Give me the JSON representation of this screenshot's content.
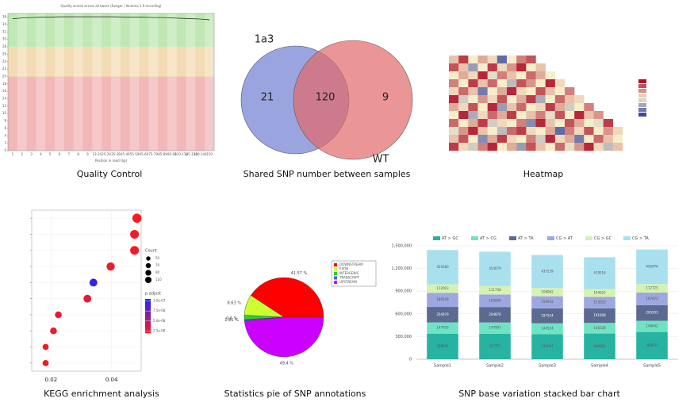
{
  "chart_data": [
    {
      "type": "line",
      "caption": "Quality Control",
      "title": "Quality scores across all bases (Sanger / Illumina 1.9 encoding)",
      "xlabel": "Position in read (bp)",
      "categories": [
        "1",
        "2",
        "3",
        "4",
        "5",
        "6",
        "7",
        "8",
        "9",
        "13-14",
        "25-29",
        "35-39",
        "45-49",
        "55-59",
        "65-69",
        "75-79",
        "85-89",
        "95-99",
        "110-114",
        "125-129",
        "140-144",
        "150"
      ],
      "values": [
        35.6,
        35.8,
        35.9,
        36,
        36,
        36.1,
        36.1,
        36.1,
        36.1,
        36.1,
        36.1,
        36.1,
        36,
        36,
        36,
        35.9,
        35.9,
        35.8,
        35.7,
        35.6,
        35.5,
        35.3
      ],
      "color": "#333333",
      "ylim": [
        0,
        37
      ],
      "yticks": [
        0,
        2,
        4,
        6,
        8,
        10,
        12,
        14,
        16,
        18,
        20,
        22,
        24,
        26,
        28,
        30,
        32,
        34,
        36
      ],
      "bands": [
        {
          "from": 0,
          "to": 20,
          "color": "#f2b7b7"
        },
        {
          "from": 20,
          "to": 28,
          "color": "#f3dcb4"
        },
        {
          "from": 28,
          "to": 37,
          "color": "#bfe8b4"
        }
      ]
    },
    {
      "type": "venn",
      "caption": "Shared SNP number between samples",
      "sets": [
        {
          "name": "1a3",
          "color": "#6f7ed0"
        },
        {
          "name": "WT",
          "color": "#e26a6a"
        }
      ],
      "values": [
        21,
        120,
        9
      ]
    },
    {
      "type": "heatmap",
      "caption": "Heatmap",
      "values": [
        [
          0.2,
          0.8,
          0.0,
          0.3,
          0.1,
          -0.8,
          0.0,
          0.5,
          0.7,
          null,
          null,
          null,
          null,
          null,
          null,
          null,
          null,
          null
        ],
        [
          0.7,
          0.2,
          -0.5,
          0.0,
          0.8,
          0.1,
          0.4,
          0.9,
          0.0,
          0.2,
          null,
          null,
          null,
          null,
          null,
          null,
          null,
          null
        ],
        [
          0.0,
          0.3,
          0.1,
          0.9,
          -0.1,
          0.5,
          0.2,
          0.0,
          0.6,
          0.3,
          0.0,
          null,
          null,
          null,
          null,
          null,
          null,
          null
        ],
        [
          0.5,
          0.0,
          0.8,
          0.2,
          0.6,
          0.0,
          -0.3,
          0.7,
          0.4,
          0.0,
          0.9,
          0.1,
          null,
          null,
          null,
          null,
          null,
          null
        ],
        [
          0.1,
          0.6,
          0.2,
          -0.7,
          0.0,
          0.3,
          0.9,
          0.1,
          0.0,
          0.7,
          0.2,
          0.0,
          0.5,
          null,
          null,
          null,
          null,
          null
        ],
        [
          0.9,
          -0.2,
          0.0,
          0.4,
          0.1,
          0.7,
          0.0,
          0.3,
          0.8,
          -0.4,
          0.0,
          0.6,
          0.2,
          0.1,
          null,
          null,
          null,
          null
        ],
        [
          0.3,
          0.1,
          0.7,
          0.0,
          0.9,
          -0.5,
          0.2,
          0.6,
          0.0,
          0.1,
          0.8,
          0.3,
          -0.2,
          0.0,
          0.5,
          null,
          null,
          null
        ],
        [
          0.0,
          0.9,
          -0.4,
          0.1,
          0.6,
          0.3,
          0.8,
          0.0,
          0.2,
          0.5,
          -0.1,
          0.7,
          0.0,
          0.9,
          0.2,
          0.4,
          null,
          null
        ],
        [
          0.6,
          0.0,
          0.3,
          0.8,
          -0.2,
          0.1,
          0.0,
          0.5,
          -0.6,
          0.9,
          0.2,
          0.0,
          0.7,
          0.3,
          0.0,
          -0.1,
          0.8,
          null
        ],
        [
          -0.1,
          0.4,
          0.9,
          0.2,
          0.0,
          -0.3,
          0.6,
          0.8,
          0.1,
          0.0,
          0.3,
          -0.8,
          0.5,
          0.1,
          0.7,
          0.0,
          0.4,
          0.1
        ],
        [
          0.2,
          0.7,
          0.0,
          -0.6,
          0.3,
          0.8,
          0.1,
          0.0,
          0.5,
          -0.2,
          0.9,
          0.1,
          0.3,
          -0.7,
          0.0,
          0.6,
          0.2,
          0.0
        ],
        [
          0.8,
          0.1,
          -0.2,
          0.5,
          0.9,
          0.0,
          0.3,
          -0.5,
          0.7,
          0.2,
          0.0,
          0.6,
          -0.1,
          0.4,
          0.9,
          0.1,
          -0.3,
          0.2
        ]
      ],
      "clim": [
        -1,
        1
      ]
    },
    {
      "type": "scatter",
      "caption": "KEGG enrichment analysis",
      "x": [
        0.0484,
        0.0476,
        0.0476,
        0.0397,
        0.034,
        0.032,
        0.0224,
        0.0208,
        0.0182,
        0.0182
      ],
      "y": [
        10,
        9,
        8,
        7,
        6,
        5,
        4,
        3,
        2,
        1
      ],
      "sizes": [
        110,
        100,
        100,
        90,
        80,
        80,
        60,
        60,
        50,
        50
      ],
      "p_adjust": [
        2.2e-08,
        2.4e-08,
        2.4e-08,
        2.6e-08,
        1e-07,
        3e-08,
        2.8e-08,
        2.8e-08,
        2.5e-08,
        2.5e-08
      ],
      "xlim": [
        0.0136,
        0.0498
      ],
      "xticks": [
        0.02,
        0.04
      ],
      "ylim": [
        0.5,
        10.5
      ],
      "size_title": "Count",
      "size_ticks": [
        50,
        70,
        90,
        110
      ],
      "color_title": "p.adjust",
      "clim": [
        2e-08,
        1.05e-07
      ],
      "color_ticks": [
        {
          "value": 1e-07,
          "label": "1.0e-07"
        },
        {
          "value": 7.5e-08,
          "label": "7.5e-08"
        },
        {
          "value": 5e-08,
          "label": "5.0e-08"
        },
        {
          "value": 2.5e-08,
          "label": "2.5e-08"
        }
      ],
      "grid": true
    },
    {
      "type": "pie",
      "caption": "Statistics pie of SNP annotations",
      "categories": [
        "DOWNSTREAM",
        "EXON",
        "INTERGENIC",
        "TRANSCRIPT",
        "UPSTREAM"
      ],
      "values": [
        41.57,
        8.63,
        1.81,
        0.6,
        49.4
      ],
      "value_labels": [
        "41.57 %",
        "8.63 %",
        "1.81 %",
        "0.6 %",
        "49.4 %"
      ],
      "colors": [
        "#ff0000",
        "#ccff33",
        "#33cc33",
        "#3366ff",
        "#cc00ff"
      ]
    },
    {
      "type": "stacked_bar",
      "caption": "SNP base variation stacked bar chart",
      "categories": [
        "Sample1",
        "Sample2",
        "Sample3",
        "Sample4",
        "Sample5"
      ],
      "series": [
        {
          "name": "AT > GC",
          "color": "#27b3a2",
          "values": [
            338652,
            337717,
            331007,
            340010,
            360073
          ]
        },
        {
          "name": "AT > CG",
          "color": "#6fe3c4",
          "values": [
            147956,
            147997,
            144524,
            140228,
            148642
          ]
        },
        {
          "name": "AT > TA",
          "color": "#5b6a8f",
          "values": [
            204979,
            204876,
            197524,
            191608,
            205503
          ]
        },
        {
          "name": "CG > AT",
          "color": "#9ea7e0",
          "values": [
            186549,
            165806,
            159952,
            153023,
            167473
          ]
        },
        {
          "name": "CG > GC",
          "color": "#d5f2b2",
          "values": [
            112003,
            111738,
            108062,
            104025,
            112725
          ]
        },
        {
          "name": "CG > TA",
          "color": "#a8e0ee",
          "values": [
            454580,
            454079,
            437239,
            419518,
            456976
          ]
        }
      ],
      "ylim": [
        0,
        1500000
      ],
      "yticks": [
        0,
        {
          "value": 300000,
          "label": "300,000"
        },
        {
          "value": 600000,
          "label": "600,000"
        },
        {
          "value": 900000,
          "label": "900,000"
        },
        {
          "value": 1200000,
          "label": "1,200,000"
        },
        {
          "value": 1500000,
          "label": "1,500,000"
        }
      ],
      "grid": true
    }
  ]
}
